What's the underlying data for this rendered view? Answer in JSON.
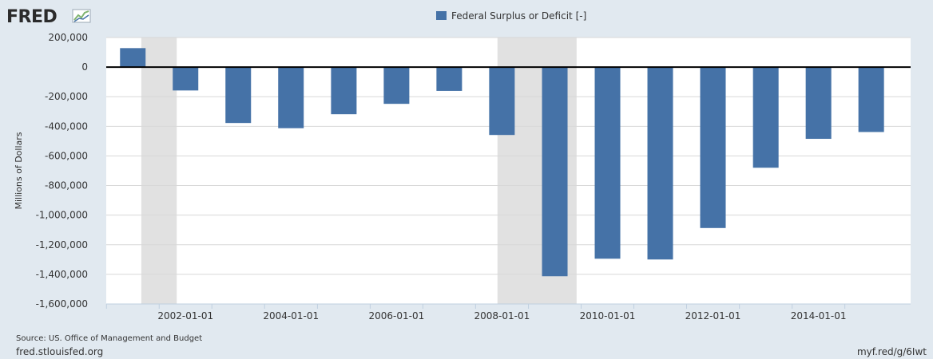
{
  "header": {
    "logo_text": "FRED",
    "logo_icon": "trend-line-chart-icon"
  },
  "footer": {
    "source": "Source: US. Office of Management and Budget",
    "site": "fred.stlouisfed.org",
    "short_link": "myf.red/g/6Iwt"
  },
  "colors": {
    "background": "#e1e9f0",
    "plot_area": "#ffffff",
    "bar": "#4572a7",
    "recession": "#e1e1e1",
    "grid": "#d8d8d8",
    "zero_line": "#000000"
  },
  "chart_data": {
    "type": "bar",
    "legend_position": "top-center",
    "grid": true,
    "series": [
      {
        "name": "Federal Surplus or Deficit [-]",
        "color": "#4572a7",
        "x": [
          "2001-01-01",
          "2002-01-01",
          "2003-01-01",
          "2004-01-01",
          "2005-01-01",
          "2006-01-01",
          "2007-01-01",
          "2008-01-01",
          "2009-01-01",
          "2010-01-01",
          "2011-01-01",
          "2012-01-01",
          "2013-01-01",
          "2014-01-01",
          "2015-01-01"
        ],
        "values": [
          128236,
          -157758,
          -377585,
          -412727,
          -318346,
          -248181,
          -160701,
          -458553,
          -1412688,
          -1294373,
          -1299599,
          -1087024,
          -679775,
          -484602,
          -438496
        ]
      }
    ],
    "x_tick_labels": [
      "2002-01-01",
      "2004-01-01",
      "2006-01-01",
      "2008-01-01",
      "2010-01-01",
      "2012-01-01",
      "2014-01-01"
    ],
    "y_ticks": [
      200000,
      0,
      -200000,
      -400000,
      -600000,
      -800000,
      -1000000,
      -1200000,
      -1400000,
      -1600000
    ],
    "y_tick_labels": [
      "200,000",
      "0",
      "-200,000",
      "-400,000",
      "-600,000",
      "-800,000",
      "-1,000,000",
      "-1,200,000",
      "-1,400,000",
      "-1,600,000"
    ],
    "ylim": [
      -1600000,
      200000
    ],
    "ylabel": "Millions of Dollars",
    "xlabel": "",
    "recessions": [
      {
        "start": "2001-03-01",
        "end": "2001-11-01"
      },
      {
        "start": "2007-12-01",
        "end": "2009-06-01"
      }
    ]
  }
}
